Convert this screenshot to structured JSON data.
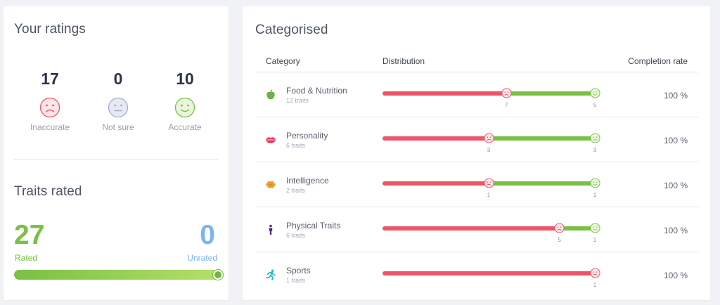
{
  "ratings_card": {
    "title": "Your ratings",
    "ratings": [
      {
        "count": "17",
        "label": "Inaccurate",
        "icon": "sad-face-icon",
        "color": "#ee5468"
      },
      {
        "count": "0",
        "label": "Not sure",
        "icon": "neutral-face-icon",
        "color": "#a3aec8"
      },
      {
        "count": "10",
        "label": "Accurate",
        "icon": "happy-face-icon",
        "color": "#79c043"
      }
    ],
    "traits_title": "Traits rated",
    "rated_count": "27",
    "rated_label": "Rated",
    "unrated_count": "0",
    "unrated_label": "Unrated",
    "rated_fraction": 1.0,
    "colors": {
      "rated": "#79c043",
      "unrated": "#7db4ee"
    }
  },
  "categorised_card": {
    "title": "Categorised",
    "headers": {
      "category": "Category",
      "distribution": "Distribution",
      "completion": "Completion rate"
    },
    "rows": [
      {
        "name": "Food & Nutrition",
        "traits": "12 traits",
        "icon": "apple-icon",
        "inaccurate": 7,
        "accurate": 5,
        "inaccurate_label": "7",
        "accurate_label": "5",
        "completion": "100 %"
      },
      {
        "name": "Personality",
        "traits": "6 traits",
        "icon": "lips-icon",
        "inaccurate": 3,
        "accurate": 3,
        "inaccurate_label": "3",
        "accurate_label": "3",
        "completion": "100 %"
      },
      {
        "name": "Intelligence",
        "traits": "2 traits",
        "icon": "brain-icon",
        "inaccurate": 1,
        "accurate": 1,
        "inaccurate_label": "1",
        "accurate_label": "1",
        "completion": "100 %"
      },
      {
        "name": "Physical Traits",
        "traits": "6 traits",
        "icon": "person-icon",
        "inaccurate": 5,
        "accurate": 1,
        "inaccurate_label": "5",
        "accurate_label": "1",
        "completion": "100 %"
      },
      {
        "name": "Sports",
        "traits": "1 traits",
        "icon": "runner-icon",
        "inaccurate": 1,
        "accurate": 0,
        "inaccurate_label": "1",
        "accurate_label": "",
        "completion": "100 %"
      }
    ],
    "colors": {
      "inaccurate": "#ee5468",
      "accurate": "#79c043"
    }
  }
}
